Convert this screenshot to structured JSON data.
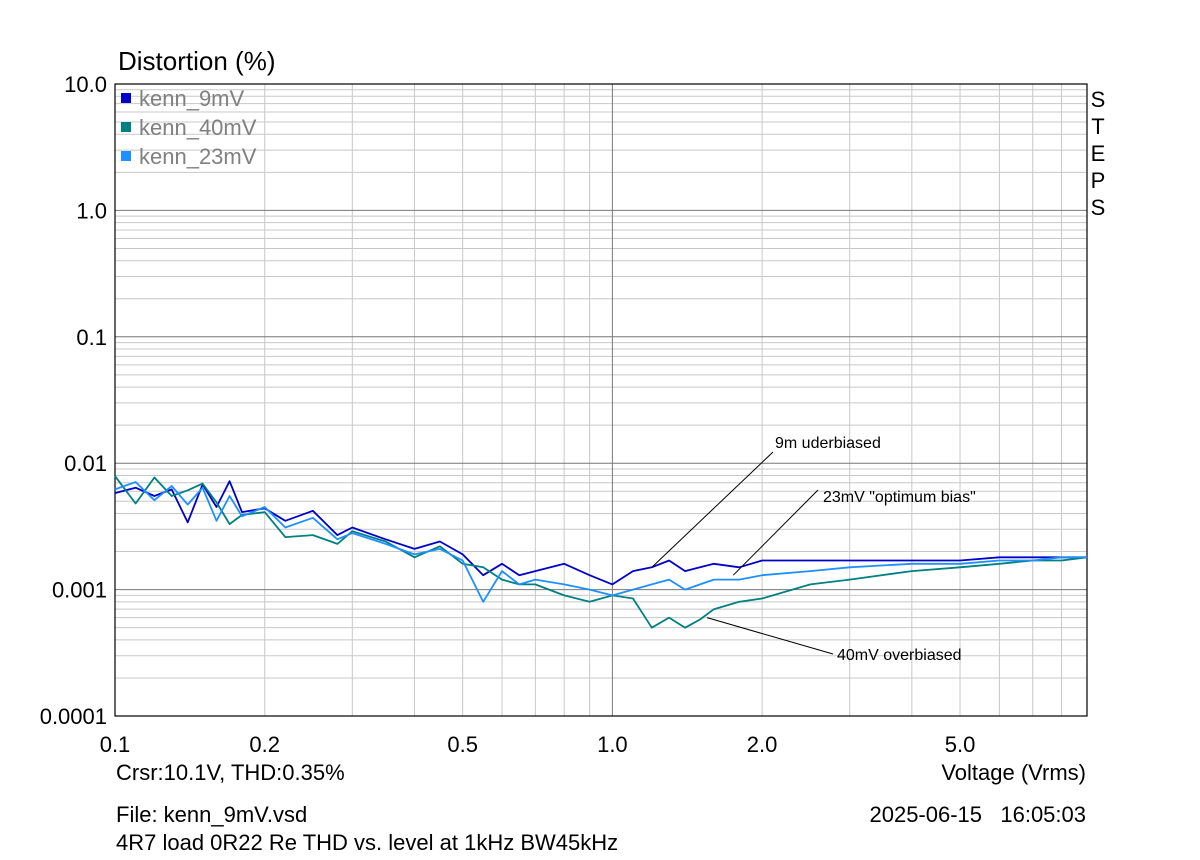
{
  "chart_data": {
    "type": "line",
    "title": "Distortion (%)",
    "xlabel": "Voltage (Vrms)",
    "x_scale": "log",
    "y_scale": "log",
    "xlim": [
      0.1,
      9.0
    ],
    "ylim": [
      0.0001,
      10.0
    ],
    "x_ticks": [
      0.1,
      0.2,
      0.5,
      1.0,
      2.0,
      5.0
    ],
    "x_tick_labels": [
      "0.1",
      "0.2",
      "0.5",
      "1.0",
      "2.0",
      "5.0"
    ],
    "y_ticks": [
      10.0,
      1.0,
      0.1,
      0.01,
      0.001,
      0.0001
    ],
    "y_tick_labels": [
      "10.0",
      "1.0",
      "0.1",
      "0.01",
      "0.001",
      "0.0001"
    ],
    "grid": true,
    "legend_position": "top-left",
    "steps_label": "STEPS",
    "series": [
      {
        "name": "kenn_9mV",
        "color": "#0000cc",
        "x": [
          0.1,
          0.11,
          0.12,
          0.13,
          0.14,
          0.15,
          0.16,
          0.17,
          0.18,
          0.2,
          0.22,
          0.25,
          0.28,
          0.3,
          0.35,
          0.4,
          0.45,
          0.5,
          0.55,
          0.6,
          0.65,
          0.7,
          0.8,
          0.9,
          1.0,
          1.1,
          1.2,
          1.3,
          1.4,
          1.5,
          1.6,
          1.8,
          2.0,
          2.5,
          3.0,
          4.0,
          5.0,
          6.0,
          7.0,
          8.0,
          9.0
        ],
        "y": [
          0.0058,
          0.0064,
          0.0055,
          0.0062,
          0.0034,
          0.0068,
          0.0045,
          0.0072,
          0.0041,
          0.0044,
          0.0035,
          0.0042,
          0.0027,
          0.0031,
          0.0025,
          0.0021,
          0.0024,
          0.0019,
          0.0013,
          0.0016,
          0.0013,
          0.0014,
          0.0016,
          0.0013,
          0.0011,
          0.0014,
          0.0015,
          0.0017,
          0.0014,
          0.0015,
          0.0016,
          0.0015,
          0.0017,
          0.0017,
          0.0017,
          0.0017,
          0.0017,
          0.0018,
          0.0018,
          0.0018,
          0.0018
        ]
      },
      {
        "name": "kenn_40mV",
        "color": "#008080",
        "x": [
          0.1,
          0.11,
          0.12,
          0.13,
          0.14,
          0.15,
          0.16,
          0.17,
          0.18,
          0.2,
          0.22,
          0.25,
          0.28,
          0.3,
          0.35,
          0.4,
          0.45,
          0.5,
          0.55,
          0.6,
          0.65,
          0.7,
          0.8,
          0.9,
          1.0,
          1.1,
          1.2,
          1.3,
          1.4,
          1.5,
          1.6,
          1.8,
          2.0,
          2.5,
          3.0,
          4.0,
          5.0,
          6.0,
          7.0,
          8.0,
          9.0
        ],
        "y": [
          0.0079,
          0.0048,
          0.0077,
          0.0055,
          0.0061,
          0.0069,
          0.0049,
          0.0033,
          0.0039,
          0.0041,
          0.0026,
          0.0027,
          0.0023,
          0.0029,
          0.0024,
          0.0018,
          0.0022,
          0.0016,
          0.0015,
          0.0012,
          0.0011,
          0.0011,
          0.0009,
          0.0008,
          0.0009,
          0.00085,
          0.0005,
          0.0006,
          0.0005,
          0.00058,
          0.0007,
          0.0008,
          0.00085,
          0.0011,
          0.0012,
          0.0014,
          0.0015,
          0.0016,
          0.0017,
          0.0017,
          0.0018
        ]
      },
      {
        "name": "kenn_23mV",
        "color": "#1e90ff",
        "x": [
          0.1,
          0.11,
          0.12,
          0.13,
          0.14,
          0.15,
          0.16,
          0.17,
          0.18,
          0.2,
          0.22,
          0.25,
          0.28,
          0.3,
          0.35,
          0.4,
          0.45,
          0.5,
          0.55,
          0.6,
          0.65,
          0.7,
          0.8,
          0.9,
          1.0,
          1.1,
          1.2,
          1.3,
          1.4,
          1.5,
          1.6,
          1.8,
          2.0,
          2.5,
          3.0,
          4.0,
          5.0,
          6.0,
          7.0,
          8.0,
          9.0
        ],
        "y": [
          0.0062,
          0.0071,
          0.0051,
          0.0066,
          0.0047,
          0.0064,
          0.0035,
          0.0055,
          0.0038,
          0.0045,
          0.0031,
          0.0037,
          0.0025,
          0.0028,
          0.0023,
          0.0019,
          0.0021,
          0.0017,
          0.0008,
          0.0014,
          0.0011,
          0.0012,
          0.0011,
          0.001,
          0.0009,
          0.001,
          0.0011,
          0.0012,
          0.001,
          0.0011,
          0.0012,
          0.0012,
          0.0013,
          0.0014,
          0.0015,
          0.0016,
          0.0016,
          0.0017,
          0.0017,
          0.0018,
          0.0018
        ]
      }
    ],
    "annotations": [
      {
        "text": "9m uderbiased",
        "x": 1.2,
        "y": 0.0015
      },
      {
        "text": "23mV \"optimum bias\"",
        "x": 1.75,
        "y": 0.0013
      },
      {
        "text": "40mV overbiased",
        "x": 1.55,
        "y": 0.0006
      }
    ]
  },
  "footer": {
    "cursor": "Crsr:10.1V, THD:0.35%",
    "file": "File: kenn_9mV.vsd",
    "datetime": "2025-06-15   16:05:03",
    "description": "4R7 load 0R22 Re THD vs. level at 1kHz BW45kHz"
  }
}
